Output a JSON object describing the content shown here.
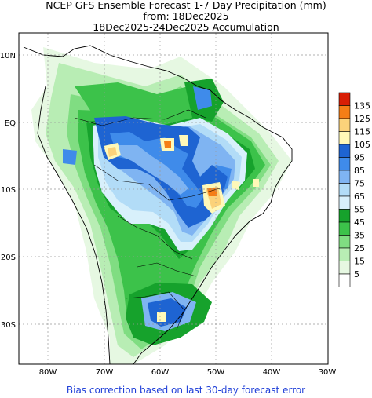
{
  "titles": {
    "line1": "NCEP GFS Ensemble Forecast 1-7 Day Precipitation (mm)",
    "line2": "from: 18Dec2025",
    "line3": "18Dec2025-24Dec2025 Accumulation"
  },
  "map": {
    "region": "South America",
    "lat_labels": [
      "10N",
      "EQ",
      "10S",
      "20S",
      "30S"
    ],
    "lon_labels": [
      "80W",
      "70W",
      "60W",
      "50W",
      "40W",
      "30W"
    ],
    "grid": true
  },
  "legend": {
    "labels": [
      "135",
      "125",
      "115",
      "105",
      "95",
      "85",
      "75",
      "65",
      "55",
      "45",
      "35",
      "25",
      "15",
      "5"
    ],
    "colors": [
      "#d81e05",
      "#f57e16",
      "#fbd27a",
      "#fff8b8",
      "#1e64d2",
      "#3f8bea",
      "#7fb4f2",
      "#b2dcf7",
      "#d8f0fb",
      "#16a22c",
      "#3cc24a",
      "#80dd82",
      "#b8edb4",
      "#e6f8e2",
      "#ffffff"
    ]
  },
  "footer": {
    "note": "Bias correction based on last 30-day forecast error"
  }
}
